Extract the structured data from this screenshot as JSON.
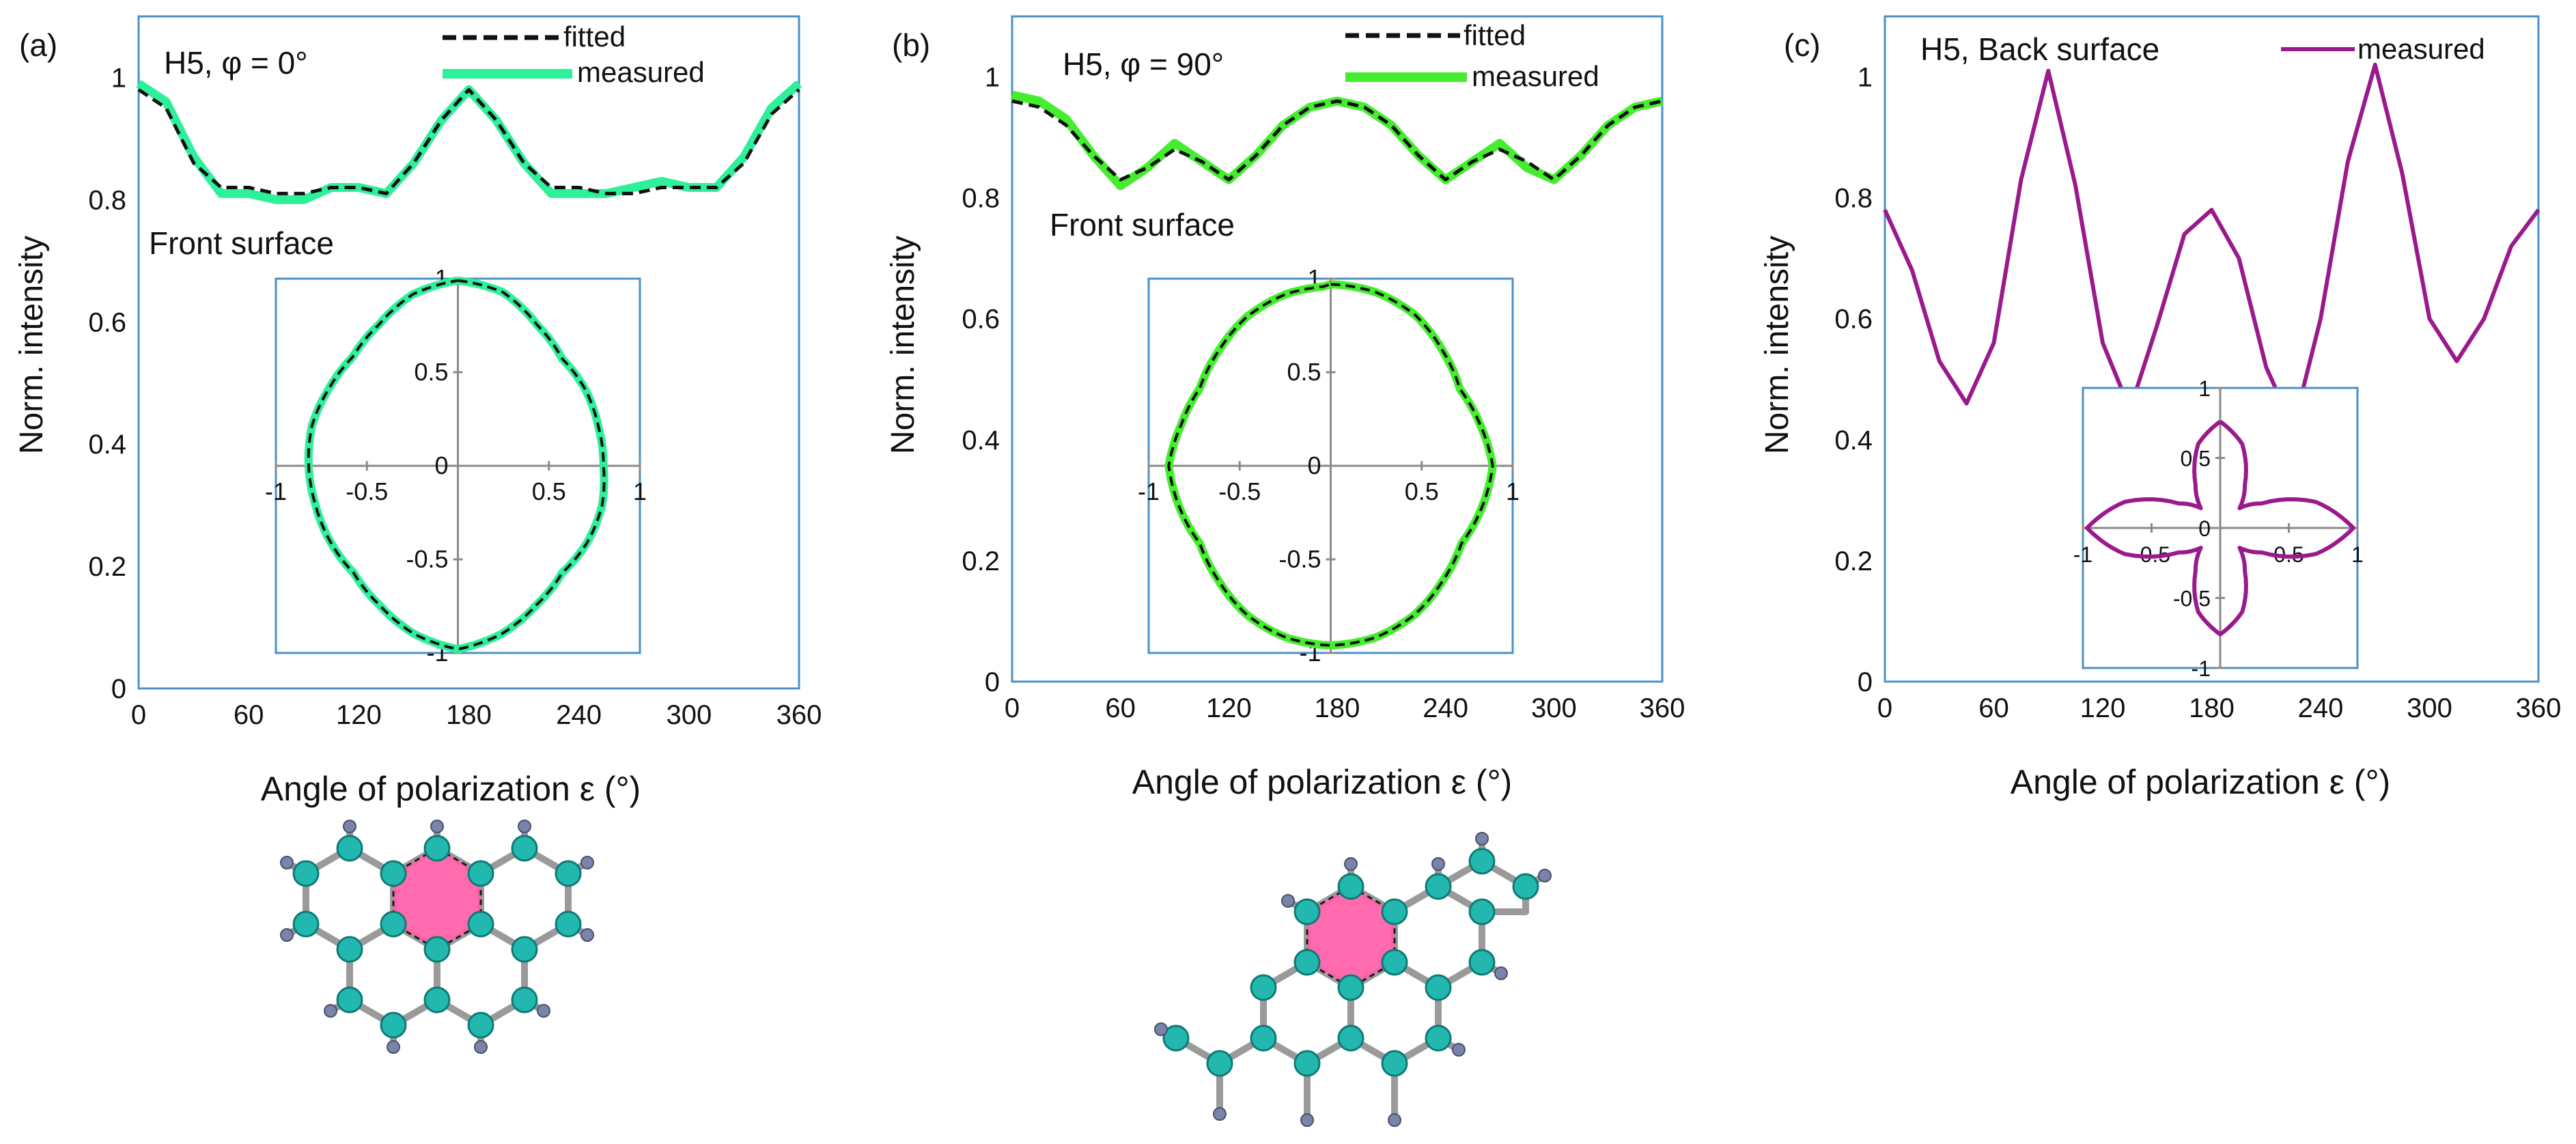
{
  "figure": {
    "panels": [
      {
        "label": "(a)",
        "title": "H5, φ = 0°",
        "annotation": "Front surface",
        "ylabel": "Norm. intensity",
        "xlabel": "Angle of polarization ε (°)"
      },
      {
        "label": "(b)",
        "title": "H5, φ = 90°",
        "annotation": "Front surface",
        "ylabel": "Norm. intensity",
        "xlabel": "Angle of polarization ε (°)"
      },
      {
        "label": "(c)",
        "title": "H5, Back surface",
        "annotation": "",
        "ylabel": "Norm. intensity",
        "xlabel": "Angle of polarization ε (°)"
      }
    ],
    "legend": {
      "fitted": "fitted",
      "measured": "measured"
    },
    "colors": {
      "measured_a": "#2ef09a",
      "measured_b": "#44ee2e",
      "measured_c": "#9a1a8c",
      "fitted": "#111111",
      "frame": "#4a90c8",
      "ring_fill": "#ff5fa8",
      "carbon": "#22b8b0",
      "hydrogen": "#7a84a8",
      "bond": "#9a9a9a"
    }
  },
  "chart_data": [
    {
      "type": "line",
      "panel": "a",
      "title": "H5, φ = 0°",
      "xlabel": "Angle of polarization ε (°)",
      "ylabel": "Norm. intensity",
      "xlim": [
        0,
        360
      ],
      "ylim": [
        0,
        1.1
      ],
      "xticks": [
        "0",
        "60",
        "120",
        "180",
        "240",
        "300",
        "360"
      ],
      "yticks": [
        "0",
        "0.2",
        "0.4",
        "0.6",
        "0.8",
        "1"
      ],
      "series": [
        {
          "name": "measured",
          "x": [
            0,
            15,
            30,
            45,
            60,
            75,
            90,
            105,
            120,
            135,
            150,
            165,
            180,
            195,
            210,
            225,
            240,
            255,
            270,
            285,
            300,
            315,
            330,
            345,
            360
          ],
          "values": [
            0.99,
            0.96,
            0.87,
            0.81,
            0.81,
            0.8,
            0.8,
            0.82,
            0.82,
            0.81,
            0.86,
            0.93,
            0.98,
            0.93,
            0.86,
            0.81,
            0.81,
            0.81,
            0.82,
            0.83,
            0.82,
            0.82,
            0.87,
            0.95,
            0.99
          ]
        },
        {
          "name": "fitted",
          "x": [
            0,
            15,
            30,
            45,
            60,
            75,
            90,
            105,
            120,
            135,
            150,
            165,
            180,
            195,
            210,
            225,
            240,
            255,
            270,
            285,
            300,
            315,
            330,
            345,
            360
          ],
          "values": [
            0.98,
            0.95,
            0.86,
            0.82,
            0.82,
            0.81,
            0.81,
            0.82,
            0.82,
            0.81,
            0.86,
            0.93,
            0.98,
            0.93,
            0.86,
            0.82,
            0.82,
            0.81,
            0.81,
            0.82,
            0.82,
            0.82,
            0.86,
            0.94,
            0.98
          ]
        }
      ],
      "inset": {
        "type": "polar",
        "xlim": [
          -1,
          1
        ],
        "ylim": [
          -1,
          1
        ],
        "xticks": [
          "-1",
          "-0.5",
          "0",
          "0.5",
          "1"
        ],
        "yticks": [
          "1",
          "0.5",
          "0",
          "-0.5",
          "-1"
        ],
        "theta": [
          0,
          15,
          30,
          45,
          60,
          75,
          90,
          105,
          120,
          135,
          150,
          165,
          180,
          195,
          210,
          225,
          240,
          255,
          270,
          285,
          300,
          315,
          330,
          345,
          360
        ],
        "r": [
          0.99,
          0.96,
          0.87,
          0.81,
          0.81,
          0.8,
          0.8,
          0.82,
          0.82,
          0.81,
          0.86,
          0.93,
          0.98,
          0.93,
          0.86,
          0.81,
          0.81,
          0.81,
          0.82,
          0.83,
          0.82,
          0.82,
          0.87,
          0.95,
          0.99
        ]
      }
    },
    {
      "type": "line",
      "panel": "b",
      "title": "H5, φ = 90°",
      "xlabel": "Angle of polarization ε (°)",
      "ylabel": "Norm. intensity",
      "xlim": [
        0,
        360
      ],
      "ylim": [
        0,
        1.1
      ],
      "xticks": [
        "0",
        "60",
        "120",
        "180",
        "240",
        "300",
        "360"
      ],
      "yticks": [
        "0",
        "0.2",
        "0.4",
        "0.6",
        "0.8",
        "1"
      ],
      "series": [
        {
          "name": "measured",
          "x": [
            0,
            15,
            30,
            45,
            60,
            75,
            90,
            105,
            120,
            135,
            150,
            165,
            180,
            195,
            210,
            225,
            240,
            255,
            270,
            285,
            300,
            315,
            330,
            345,
            360
          ],
          "values": [
            0.97,
            0.96,
            0.93,
            0.87,
            0.82,
            0.85,
            0.89,
            0.86,
            0.83,
            0.87,
            0.92,
            0.95,
            0.96,
            0.95,
            0.92,
            0.87,
            0.83,
            0.86,
            0.89,
            0.85,
            0.83,
            0.87,
            0.92,
            0.95,
            0.96
          ]
        },
        {
          "name": "fitted",
          "x": [
            0,
            15,
            30,
            45,
            60,
            75,
            90,
            105,
            120,
            135,
            150,
            165,
            180,
            195,
            210,
            225,
            240,
            255,
            270,
            285,
            300,
            315,
            330,
            345,
            360
          ],
          "values": [
            0.96,
            0.95,
            0.92,
            0.87,
            0.83,
            0.85,
            0.88,
            0.86,
            0.83,
            0.87,
            0.92,
            0.95,
            0.96,
            0.95,
            0.92,
            0.87,
            0.83,
            0.86,
            0.88,
            0.86,
            0.83,
            0.87,
            0.92,
            0.95,
            0.96
          ]
        }
      ],
      "inset": {
        "type": "polar",
        "xlim": [
          -1,
          1
        ],
        "ylim": [
          -1,
          1
        ],
        "xticks": [
          "-1",
          "-0.5",
          "0",
          "0.5",
          "1"
        ],
        "yticks": [
          "1",
          "0.5",
          "0",
          "-0.5",
          "-1"
        ],
        "theta": [
          0,
          15,
          30,
          45,
          60,
          75,
          90,
          105,
          120,
          135,
          150,
          165,
          180,
          195,
          210,
          225,
          240,
          255,
          270,
          285,
          300,
          315,
          330,
          345,
          360
        ],
        "r": [
          0.97,
          0.96,
          0.93,
          0.87,
          0.82,
          0.85,
          0.89,
          0.86,
          0.83,
          0.87,
          0.92,
          0.95,
          0.96,
          0.95,
          0.92,
          0.87,
          0.83,
          0.86,
          0.89,
          0.85,
          0.83,
          0.87,
          0.92,
          0.95,
          0.96
        ]
      }
    },
    {
      "type": "line",
      "panel": "c",
      "title": "H5, Back surface",
      "xlabel": "Angle of polarization ε (°)",
      "ylabel": "Norm. intensity",
      "xlim": [
        0,
        360
      ],
      "ylim": [
        0,
        1.1
      ],
      "xticks": [
        "0",
        "60",
        "120",
        "180",
        "240",
        "300",
        "360"
      ],
      "yticks": [
        "0",
        "0.2",
        "0.4",
        "0.6",
        "0.8",
        "1"
      ],
      "series": [
        {
          "name": "measured",
          "x": [
            0,
            15,
            30,
            45,
            60,
            75,
            90,
            105,
            120,
            135,
            150,
            165,
            180,
            195,
            210,
            225,
            240,
            255,
            270,
            285,
            300,
            315,
            330,
            345,
            360
          ],
          "values": [
            0.78,
            0.68,
            0.53,
            0.46,
            0.56,
            0.83,
            1.01,
            0.82,
            0.56,
            0.45,
            0.59,
            0.74,
            0.78,
            0.7,
            0.52,
            0.42,
            0.6,
            0.86,
            1.02,
            0.84,
            0.6,
            0.53,
            0.6,
            0.72,
            0.78
          ]
        }
      ],
      "inset": {
        "type": "polar",
        "xlim": [
          -1,
          1
        ],
        "ylim": [
          -1,
          1
        ],
        "xticks": [
          "-1",
          "-0.5",
          "0",
          "0.5",
          "1"
        ],
        "yticks": [
          "1",
          "0.5",
          "0",
          "-0.5",
          "-1"
        ],
        "theta": [
          0,
          15,
          30,
          45,
          60,
          75,
          90,
          105,
          120,
          135,
          150,
          165,
          180,
          195,
          210,
          225,
          240,
          255,
          270,
          285,
          300,
          315,
          330,
          345,
          360
        ],
        "r": [
          0.76,
          0.62,
          0.36,
          0.2,
          0.35,
          0.72,
          0.97,
          0.72,
          0.35,
          0.2,
          0.36,
          0.62,
          0.76,
          0.62,
          0.36,
          0.2,
          0.35,
          0.72,
          0.97,
          0.72,
          0.35,
          0.2,
          0.36,
          0.62,
          0.76
        ]
      }
    }
  ]
}
